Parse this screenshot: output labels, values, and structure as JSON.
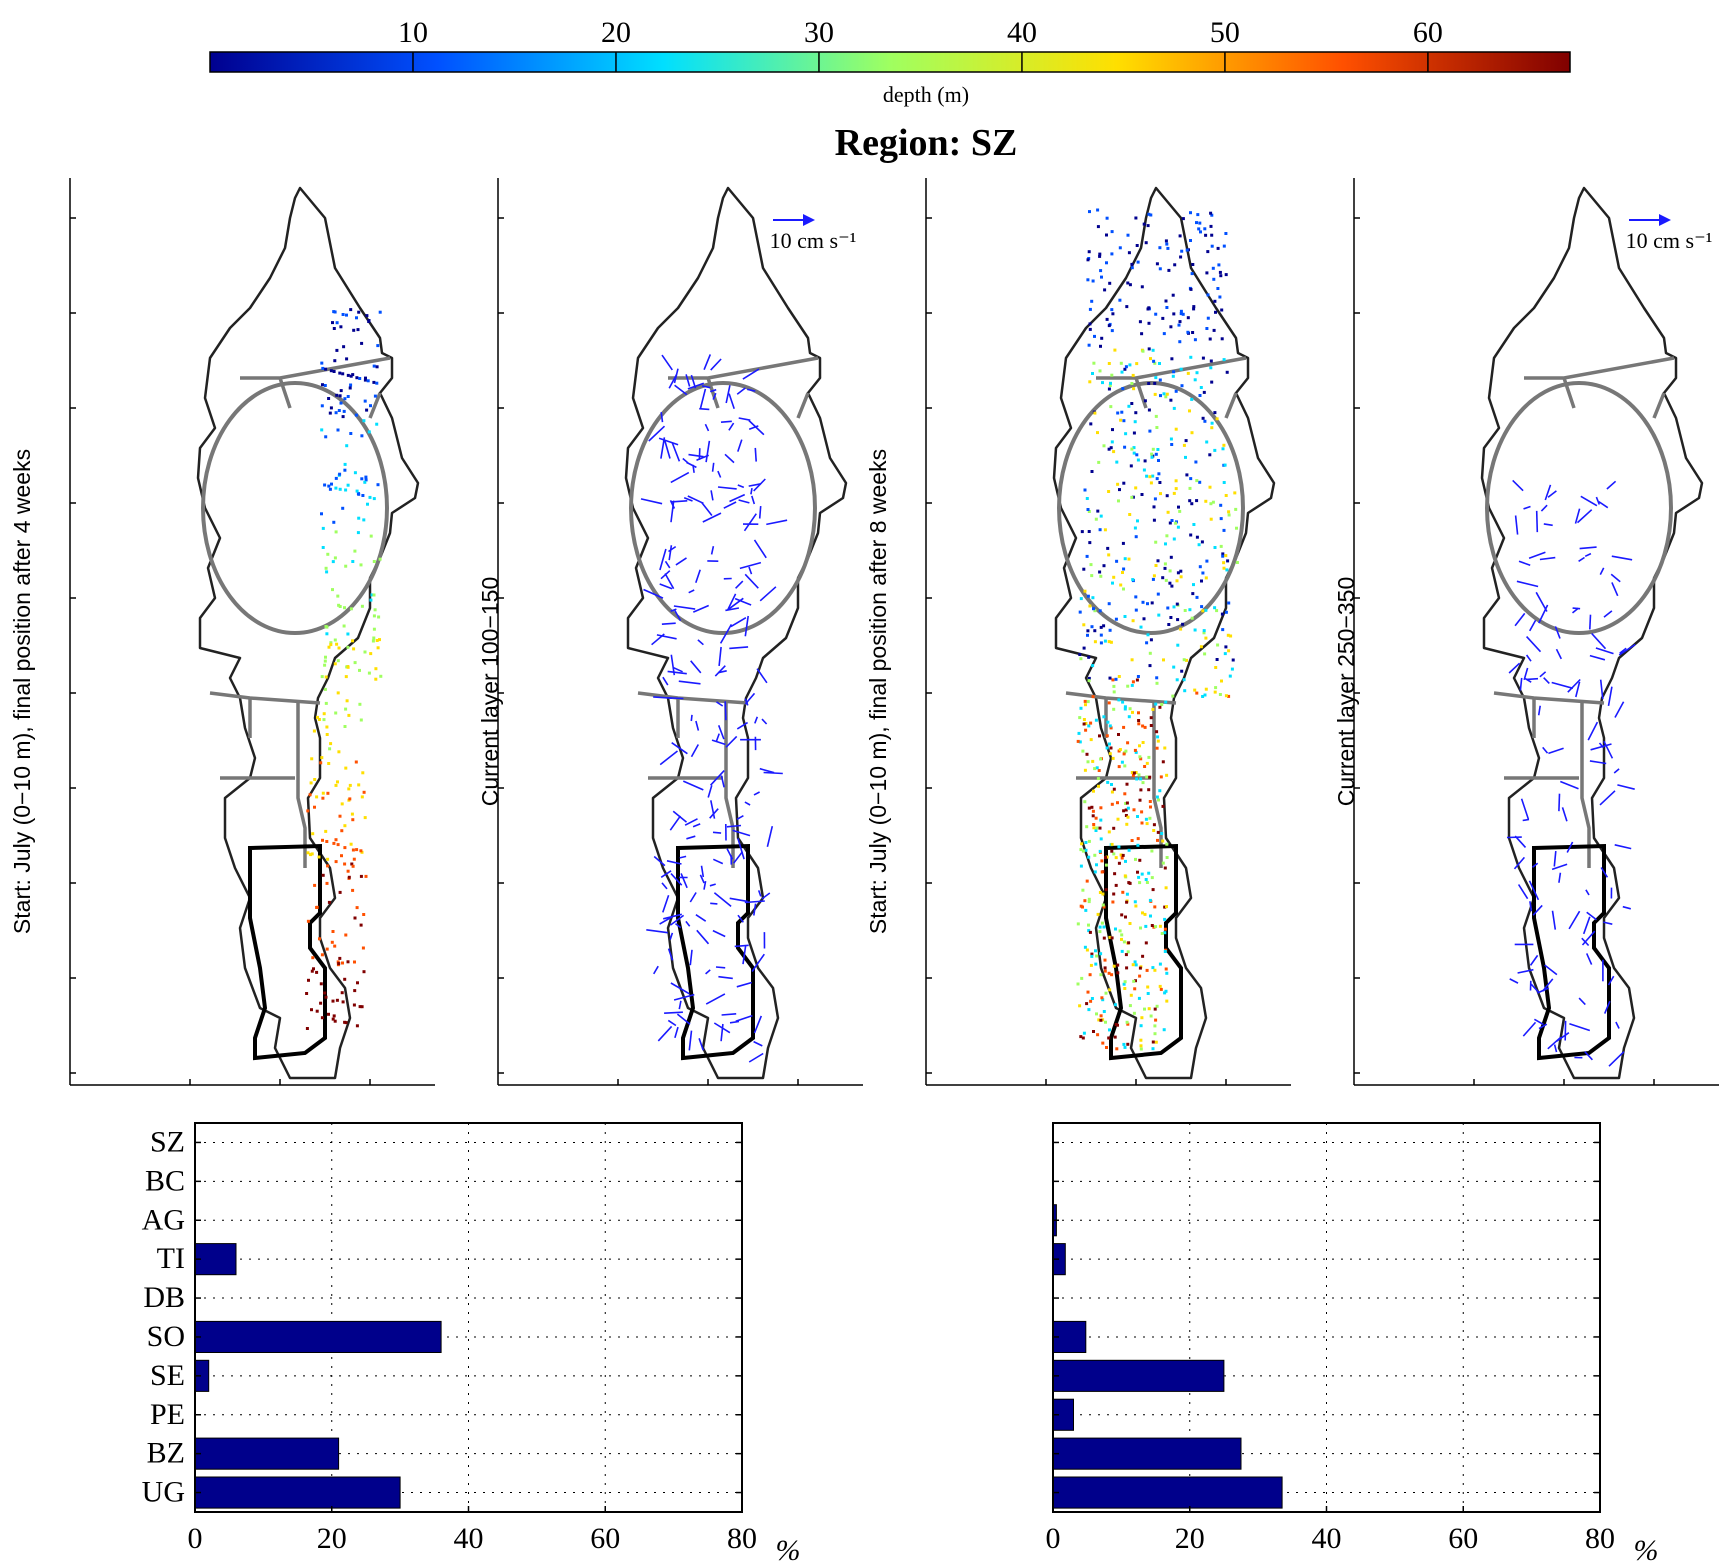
{
  "figure": {
    "title": "Region: SZ",
    "colorbar": {
      "label": "depth (m)",
      "ticks": [
        "10",
        "20",
        "30",
        "40",
        "50",
        "60"
      ],
      "colors": [
        "#00008f",
        "#0050ff",
        "#00dfff",
        "#9fff60",
        "#ffdf00",
        "#ff5000",
        "#800000"
      ]
    },
    "map_panels": [
      {
        "ylabel": "Start: July (0−10 m), final position after 4 weeks",
        "kind": "particles",
        "spread": 0.35,
        "scale_label": ""
      },
      {
        "ylabel": "Current layer 100−150",
        "kind": "currents",
        "spread": 1.0,
        "scale_label": "10 cm s⁻¹"
      },
      {
        "ylabel": "Start: July (0−10 m), final position after 8 weeks",
        "kind": "particles",
        "spread": 1.0,
        "scale_label": ""
      },
      {
        "ylabel": "Current layer 250−350",
        "kind": "currents",
        "spread": 0.55,
        "scale_label": "10 cm s⁻¹"
      }
    ],
    "bar_color": "#00008b"
  },
  "chart_data": [
    {
      "type": "bar",
      "orientation": "horizontal",
      "categories": [
        "SZ",
        "BC",
        "AG",
        "TI",
        "DB",
        "SO",
        "SE",
        "PE",
        "BZ",
        "UG"
      ],
      "values": [
        0,
        0,
        0,
        6,
        0,
        36,
        2,
        0,
        21,
        30
      ],
      "xlim": [
        0,
        80
      ],
      "xticks": [
        "0",
        "20",
        "40",
        "60",
        "80"
      ],
      "xlabel": "%",
      "grid": true
    },
    {
      "type": "bar",
      "orientation": "horizontal",
      "categories": [
        "SZ",
        "BC",
        "AG",
        "TI",
        "DB",
        "SO",
        "SE",
        "PE",
        "BZ",
        "UG"
      ],
      "values": [
        0,
        0,
        0.5,
        1.8,
        0,
        4.8,
        25,
        3,
        27.5,
        33.5
      ],
      "xlim": [
        0,
        80
      ],
      "xticks": [
        "0",
        "20",
        "40",
        "60",
        "80"
      ],
      "xlabel": "%",
      "grid": true
    }
  ]
}
